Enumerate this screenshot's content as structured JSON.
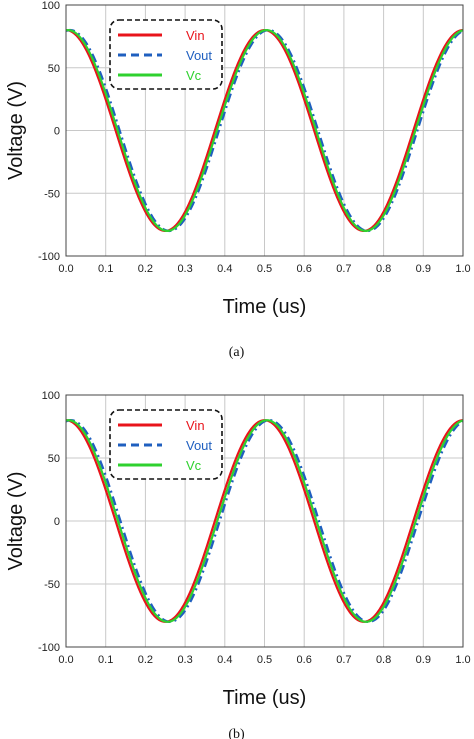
{
  "colors": {
    "vin": "#e8141b",
    "vout": "#1f5fbf",
    "vc": "#2fd12f",
    "grid": "#c8c8c8"
  },
  "chart_data": [
    {
      "type": "line",
      "caption": "(a)",
      "xlabel": "Time (us)",
      "ylabel": "Voltage (V)",
      "xlim": [
        0,
        1.0
      ],
      "ylim": [
        -100,
        100
      ],
      "xticks": [
        "0.0",
        "0.1",
        "0.2",
        "0.3",
        "0.4",
        "0.5",
        "0.6",
        "0.7",
        "0.8",
        "0.9",
        "1.0"
      ],
      "yticks": [
        "-100",
        "-50",
        "0",
        "50",
        "100"
      ],
      "grid": true,
      "legend_position": "top-left",
      "series": [
        {
          "name": "Vin",
          "amplitude": 80,
          "period_us": 0.5,
          "phase_shift_us": 0.0,
          "style": "solid"
        },
        {
          "name": "Vout",
          "amplitude": 80,
          "period_us": 0.5,
          "phase_shift_us": 0.01,
          "style": "dashed"
        },
        {
          "name": "Vc",
          "amplitude": 80,
          "period_us": 0.5,
          "phase_shift_us": 0.005,
          "style": "solid"
        }
      ]
    },
    {
      "type": "line",
      "caption": "(b)",
      "xlabel": "Time (us)",
      "ylabel": "Voltage (V)",
      "xlim": [
        0,
        1.0
      ],
      "ylim": [
        -100,
        100
      ],
      "xticks": [
        "0.0",
        "0.1",
        "0.2",
        "0.3",
        "0.4",
        "0.5",
        "0.6",
        "0.7",
        "0.8",
        "0.9",
        "1.0"
      ],
      "yticks": [
        "-100",
        "-50",
        "0",
        "50",
        "100"
      ],
      "grid": true,
      "legend_position": "top-left",
      "series": [
        {
          "name": "Vin",
          "amplitude": 80,
          "period_us": 0.5,
          "phase_shift_us": 0.0,
          "style": "solid"
        },
        {
          "name": "Vout",
          "amplitude": 80,
          "period_us": 0.5,
          "phase_shift_us": 0.012,
          "style": "dashed"
        },
        {
          "name": "Vc",
          "amplitude": 80,
          "period_us": 0.5,
          "phase_shift_us": 0.006,
          "style": "solid"
        }
      ]
    }
  ]
}
